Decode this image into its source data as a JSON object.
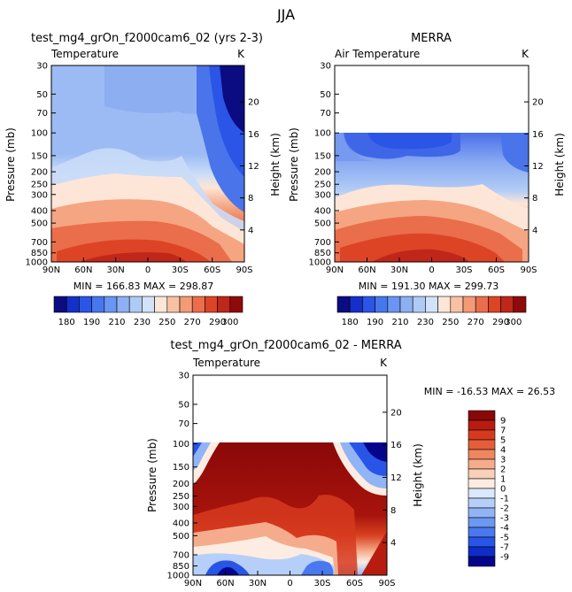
{
  "page": {
    "title": "JJA"
  },
  "colors": {
    "abs_scale": [
      "#0b0b82",
      "#1430c8",
      "#2a55e6",
      "#4677ee",
      "#6a95f2",
      "#8db0f2",
      "#aecbf5",
      "#d1e2f9",
      "#fde6d7",
      "#f9c1a3",
      "#f39a76",
      "#ea6e4b",
      "#dd4426",
      "#c0261a",
      "#8f0a0a"
    ],
    "diff_scale": [
      "#05058c",
      "#0f2cc8",
      "#2855e6",
      "#4a78ee",
      "#6c98f2",
      "#91b4f5",
      "#b6cff8",
      "#dbe8fb",
      "#fdece2",
      "#f9cfb8",
      "#f5ac8c",
      "#ee8660",
      "#e55e3a",
      "#d63a1e",
      "#b81c10",
      "#8a0808"
    ]
  },
  "chart_data": [
    {
      "type": "heatmap",
      "title": "test_mg4_grOn_f2000cam6_02 (yrs 2-3)",
      "subtitle_left": "Temperature",
      "subtitle_right": "K",
      "ylabel": "Pressure (mb)",
      "ylabel_right": "Height (km)",
      "x_ticks": [
        "90N",
        "60N",
        "30N",
        "0",
        "30S",
        "60S",
        "90S"
      ],
      "y_ticks": [
        "30",
        "50",
        "70",
        "100",
        "150",
        "200",
        "250",
        "300",
        "400",
        "500",
        "700",
        "850",
        "1000"
      ],
      "y_ticks_right": [
        "20",
        "16",
        "12",
        "8",
        "4"
      ],
      "ylim": [
        1000,
        30
      ],
      "stats": "MIN = 166.83   MAX = 298.87",
      "colorbar_labels": [
        "180",
        "190",
        "210",
        "230",
        "250",
        "270",
        "290",
        "300"
      ]
    },
    {
      "type": "heatmap",
      "title": "MERRA",
      "subtitle_left": "Air Temperature",
      "subtitle_right": "K",
      "ylabel": "Pressure (mb)",
      "ylabel_right": "Height (km)",
      "x_ticks": [
        "90N",
        "60N",
        "30N",
        "0",
        "30S",
        "60S",
        "90S"
      ],
      "y_ticks": [
        "30",
        "50",
        "70",
        "100",
        "150",
        "200",
        "250",
        "300",
        "400",
        "500",
        "700",
        "850",
        "1000"
      ],
      "y_ticks_right": [
        "20",
        "16",
        "12",
        "8",
        "4"
      ],
      "ylim": [
        1000,
        30
      ],
      "data_top": 100,
      "stats": "MIN = 191.30   MAX = 299.73",
      "colorbar_labels": [
        "180",
        "190",
        "210",
        "230",
        "250",
        "270",
        "290",
        "300"
      ]
    },
    {
      "type": "heatmap",
      "title": "test_mg4_grOn_f2000cam6_02 - MERRA",
      "subtitle_left": "Temperature",
      "subtitle_right": "K",
      "ylabel": "Pressure (mb)",
      "ylabel_right": "Height (km)",
      "x_ticks": [
        "90N",
        "60N",
        "30N",
        "0",
        "30S",
        "60S",
        "90S"
      ],
      "y_ticks": [
        "30",
        "50",
        "70",
        "100",
        "150",
        "200",
        "250",
        "300",
        "400",
        "500",
        "700",
        "850",
        "1000"
      ],
      "y_ticks_right": [
        "20",
        "16",
        "12",
        "8",
        "4"
      ],
      "ylim": [
        1000,
        30
      ],
      "data_top": 100,
      "stats": "MIN = -16.53   MAX =  26.53",
      "colorbar_labels": [
        "9",
        "7",
        "5",
        "4",
        "3",
        "2",
        "1",
        "0",
        "-1",
        "-2",
        "-3",
        "-4",
        "-5",
        "-7",
        "-9"
      ]
    }
  ]
}
